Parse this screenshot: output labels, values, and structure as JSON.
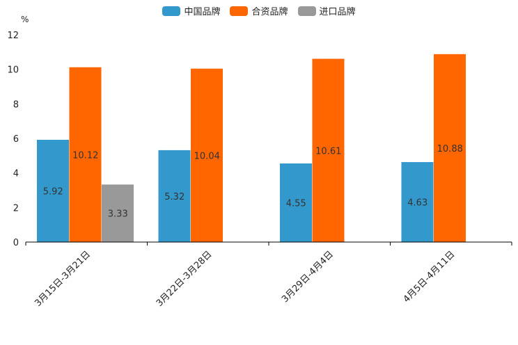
{
  "chart_data": {
    "type": "bar",
    "ylabel": "%",
    "ylim": [
      0,
      12
    ],
    "yticks": [
      0,
      2,
      4,
      6,
      8,
      10,
      12
    ],
    "categories": [
      "3月15日-3月21日",
      "3月22日-3月28日",
      "3月29日-4月4日",
      "4月5日-4月11日"
    ],
    "series": [
      {
        "name": "中国品牌",
        "color": "#3399cc",
        "values": [
          5.92,
          5.32,
          4.55,
          4.63
        ]
      },
      {
        "name": "合资品牌",
        "color": "#ff6600",
        "values": [
          10.12,
          10.04,
          10.61,
          10.88
        ]
      },
      {
        "name": "进口品牌",
        "color": "#999999",
        "values": [
          3.33,
          null,
          null,
          null
        ]
      }
    ],
    "legend_position": "top-center",
    "grid": false
  }
}
